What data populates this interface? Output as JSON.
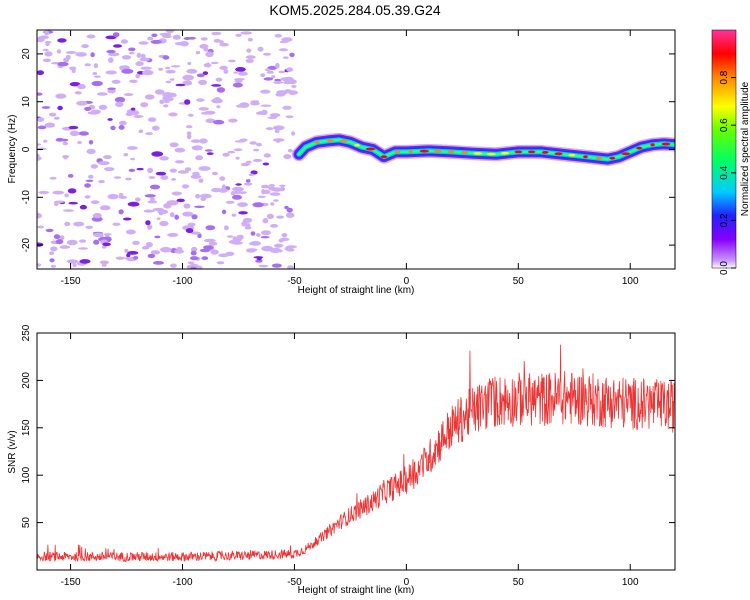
{
  "title": "KOM5.2025.284.05.39.G24",
  "chart_data": [
    {
      "type": "heatmap",
      "name": "spectrogram",
      "xlabel": "Height of straight line (km)",
      "ylabel": "Frequency (Hz)",
      "xlim": [
        -165,
        120
      ],
      "ylim": [
        -25,
        25
      ],
      "xticks": [
        "-150",
        "-100",
        "-50",
        "0",
        "50",
        "100"
      ],
      "xtick_values": [
        -150,
        -100,
        -50,
        0,
        50,
        100
      ],
      "yticks": [
        "-20",
        "-10",
        "0",
        "10",
        "20"
      ],
      "ytick_values": [
        -20,
        -10,
        0,
        10,
        20
      ],
      "noise_region_x": [
        -165,
        -50
      ],
      "signal_trace": {
        "x": [
          -48,
          -45,
          -40,
          -35,
          -30,
          -25,
          -20,
          -15,
          -10,
          -5,
          0,
          10,
          20,
          30,
          40,
          50,
          60,
          70,
          80,
          90,
          95,
          100,
          105,
          110,
          115,
          120
        ],
        "y": [
          -1,
          0.5,
          1.5,
          1.8,
          2.0,
          1.5,
          0.5,
          0,
          -1.5,
          -0.5,
          -0.5,
          -0.3,
          -0.5,
          -0.8,
          -1.0,
          -0.5,
          -0.5,
          -1.0,
          -1.5,
          -2.0,
          -1.5,
          -0.5,
          0.5,
          1.0,
          1.2,
          1.0
        ]
      },
      "colorbar": {
        "label": "Normalized spectral amplitude",
        "ticks": [
          "0.0",
          "0.2",
          "0.4",
          "0.6",
          "0.8"
        ],
        "tick_values": [
          0.0,
          0.2,
          0.4,
          0.6,
          0.8
        ],
        "range": [
          0,
          1
        ]
      }
    },
    {
      "type": "line",
      "name": "snr",
      "xlabel": "Height of straight line (km)",
      "ylabel": "SNR (v/v)",
      "xlim": [
        -165,
        120
      ],
      "ylim": [
        0,
        250
      ],
      "xticks": [
        "-150",
        "-100",
        "-50",
        "0",
        "50",
        "100"
      ],
      "xtick_values": [
        -150,
        -100,
        -50,
        0,
        50,
        100
      ],
      "yticks": [
        "50",
        "100",
        "150",
        "200",
        "250"
      ],
      "ytick_values": [
        50,
        100,
        150,
        200,
        250
      ],
      "color": "#ee3333",
      "series": [
        {
          "name": "SNR",
          "x": [
            -165,
            -150,
            -125,
            -100,
            -75,
            -50,
            -45,
            -40,
            -35,
            -30,
            -25,
            -20,
            -15,
            -10,
            -5,
            0,
            5,
            10,
            15,
            20,
            25,
            30,
            35,
            40,
            50,
            60,
            70,
            80,
            90,
            100,
            110,
            120
          ],
          "y": [
            14,
            14,
            14,
            14,
            15,
            17,
            22,
            30,
            40,
            50,
            58,
            65,
            72,
            82,
            88,
            95,
            105,
            118,
            135,
            150,
            160,
            168,
            174,
            178,
            180,
            180,
            182,
            180,
            178,
            176,
            174,
            172
          ]
        }
      ]
    }
  ]
}
